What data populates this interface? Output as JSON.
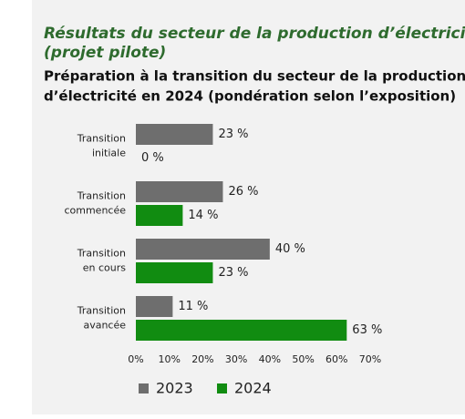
{
  "chart_data": {
    "type": "hbar",
    "title": [
      "Résultats du secteur de la production d’électricité",
      "(projet pilote)"
    ],
    "subtitle": [
      "Préparation à la transition du secteur de la production",
      "d’électricité en 2024 (pondération selon l’exposition)"
    ],
    "categories": [
      [
        "Transition",
        "initiale"
      ],
      [
        "Transition",
        "commencée"
      ],
      [
        "Transition",
        "en cours"
      ],
      [
        "Transition",
        "avancée"
      ]
    ],
    "series": [
      {
        "name": "2023",
        "color": "#6e6e6e",
        "values": [
          23,
          26,
          40,
          11
        ],
        "value_labels": [
          "23 %",
          "26 %",
          "40 %",
          "11 %"
        ]
      },
      {
        "name": "2024",
        "color": "#118c11",
        "values": [
          0,
          14,
          23,
          63
        ],
        "value_labels": [
          "0 %",
          "14 %",
          "23 %",
          "63 %"
        ]
      }
    ],
    "xlim": [
      0,
      70
    ],
    "xticks": [
      {
        "value": 0,
        "label": "0%"
      },
      {
        "value": 10,
        "label": "10%"
      },
      {
        "value": 20,
        "label": "20%"
      },
      {
        "value": 30,
        "label": "30%"
      },
      {
        "value": 40,
        "label": "40%"
      },
      {
        "value": 50,
        "label": "50%"
      },
      {
        "value": 60,
        "label": "60%"
      },
      {
        "value": 70,
        "label": "70%"
      }
    ],
    "legend": "bottom"
  }
}
